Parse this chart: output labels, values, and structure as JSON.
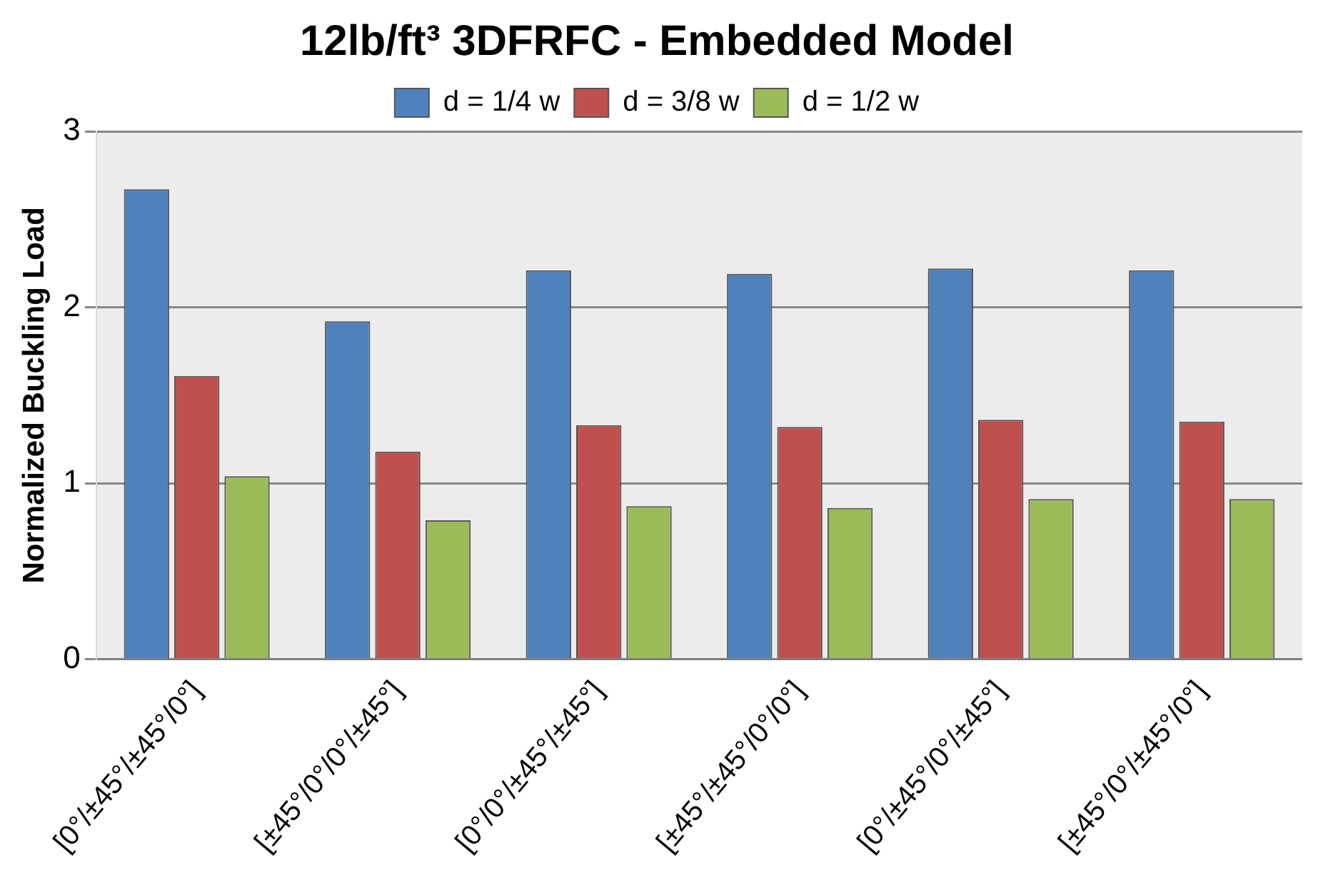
{
  "chart_data": {
    "type": "bar",
    "title": "12lb/ft³ 3DFRFC - Embedded Model",
    "ylabel": "Normalized Buckling Load",
    "categories": [
      "[0°/±45°/±45°/0°]",
      "[±45°/0°/0°/±45°]",
      "[0°/0°/±45°/±45°]",
      "[±45°/±45°/0°/0°]",
      "[0°/±45°/0°/±45°]",
      "[±45°/0°/±45°/0°]"
    ],
    "series": [
      {
        "name": "d = 1/4 w",
        "color": "#4f81bd",
        "values": [
          2.67,
          1.92,
          2.21,
          2.19,
          2.22,
          2.21
        ]
      },
      {
        "name": "d = 3/8 w",
        "color": "#c0504d",
        "values": [
          1.61,
          1.18,
          1.33,
          1.32,
          1.36,
          1.35
        ]
      },
      {
        "name": "d = 1/2 w",
        "color": "#9bbb59",
        "values": [
          1.04,
          0.79,
          0.87,
          0.86,
          0.91,
          0.91
        ]
      }
    ],
    "ylim": [
      0,
      3
    ],
    "yticks": [
      0,
      1,
      2,
      3
    ],
    "grid": "y",
    "legend": "top"
  }
}
